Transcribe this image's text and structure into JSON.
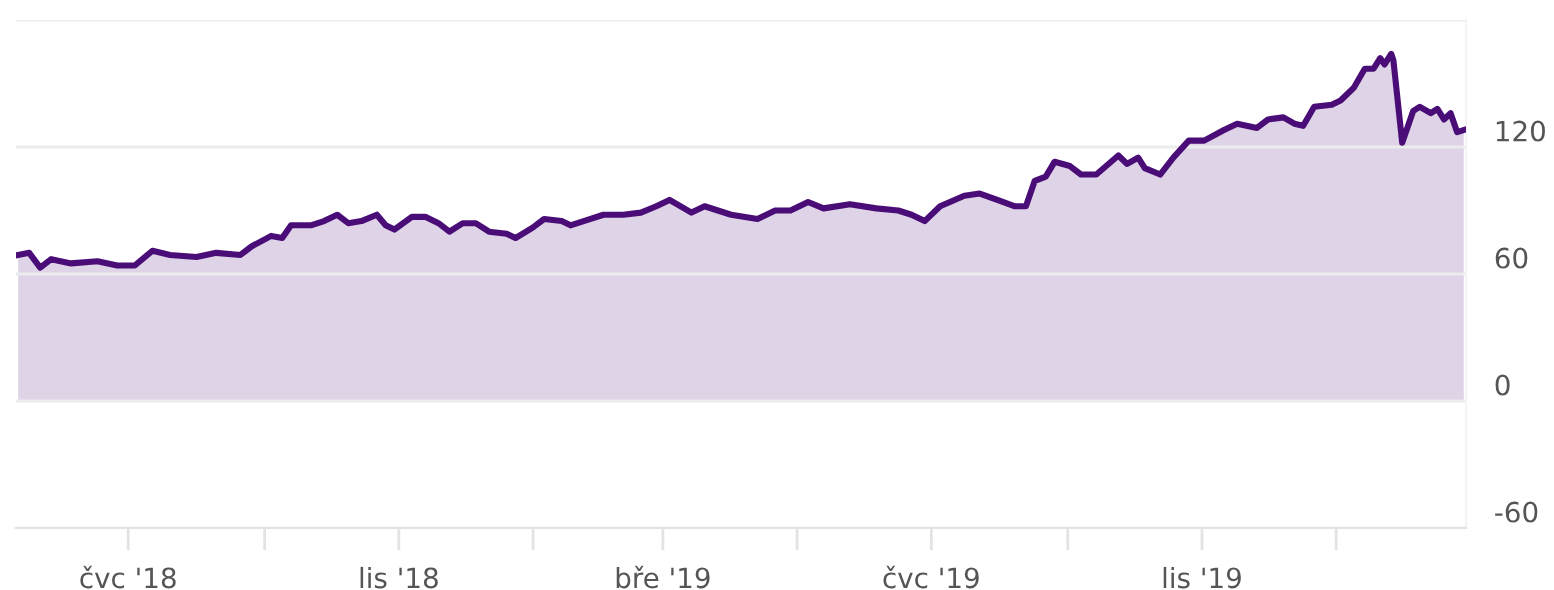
{
  "chart_data": {
    "type": "area",
    "x": [
      "2018-05-12",
      "2018-05-17",
      "2018-05-22",
      "2018-05-27",
      "2018-06-05",
      "2018-06-17",
      "2018-06-26",
      "2018-07-04",
      "2018-07-12",
      "2018-07-20",
      "2018-08-01",
      "2018-08-10",
      "2018-08-21",
      "2018-08-26",
      "2018-09-04",
      "2018-09-09",
      "2018-09-13",
      "2018-09-22",
      "2018-09-28",
      "2018-10-04",
      "2018-10-09",
      "2018-10-15",
      "2018-10-22",
      "2018-10-26",
      "2018-10-30",
      "2018-11-07",
      "2018-11-13",
      "2018-11-19",
      "2018-11-24",
      "2018-11-30",
      "2018-12-06",
      "2018-12-12",
      "2018-12-20",
      "2018-12-24",
      "2019-01-01",
      "2019-01-06",
      "2019-01-14",
      "2019-01-18",
      "2019-01-24",
      "2019-02-02",
      "2019-02-11",
      "2019-02-19",
      "2019-02-26",
      "2019-03-04",
      "2019-03-14",
      "2019-03-20",
      "2019-03-26",
      "2019-04-01",
      "2019-04-13",
      "2019-04-21",
      "2019-04-28",
      "2019-05-06",
      "2019-05-13",
      "2019-05-25",
      "2019-06-06",
      "2019-06-16",
      "2019-06-22",
      "2019-06-28",
      "2019-07-05",
      "2019-07-16",
      "2019-07-23",
      "2019-07-31",
      "2019-08-08",
      "2019-08-13",
      "2019-08-17",
      "2019-08-22",
      "2019-08-26",
      "2019-09-02",
      "2019-09-07",
      "2019-09-14",
      "2019-09-24",
      "2019-09-28",
      "2019-10-03",
      "2019-10-06",
      "2019-10-13",
      "2019-10-19",
      "2019-10-26",
      "2019-11-02",
      "2019-11-11",
      "2019-11-17",
      "2019-11-26",
      "2019-12-01",
      "2019-12-08",
      "2019-12-13",
      "2019-12-17",
      "2019-12-22",
      "2019-12-30",
      "2020-01-03",
      "2020-01-09",
      "2020-01-14",
      "2020-01-18",
      "2020-01-21",
      "2020-01-23",
      "2020-01-26",
      "2020-01-27",
      "2020-01-31",
      "2020-02-05",
      "2020-02-08",
      "2020-02-13",
      "2020-02-16",
      "2020-02-19",
      "2020-02-22",
      "2020-02-25",
      "2020-02-28"
    ],
    "series": [
      {
        "color": "#4a0d78",
        "values": [
          69,
          70,
          63,
          67,
          65,
          66,
          64,
          64,
          71,
          69,
          68,
          70,
          69,
          73,
          78,
          77,
          83,
          83,
          85,
          88,
          84,
          85,
          88,
          83,
          81,
          87,
          87,
          84,
          80,
          84,
          84,
          80,
          79,
          77,
          82,
          86,
          85,
          83,
          85,
          88,
          88,
          89,
          92,
          95,
          89,
          92,
          90,
          88,
          86,
          90,
          90,
          94,
          91,
          93,
          91,
          90,
          88,
          85,
          92,
          97,
          98,
          95,
          92,
          92,
          104,
          106,
          113,
          111,
          107,
          107,
          116,
          112,
          115,
          110,
          107,
          115,
          123,
          123,
          128,
          131,
          129,
          133,
          134,
          131,
          130,
          139,
          140,
          142,
          148,
          157,
          157,
          162,
          159,
          164,
          161,
          122,
          137,
          139,
          136,
          138,
          133,
          136,
          127,
          128
        ]
      }
    ],
    "xlim": [
      "2018-05-11",
      "2020-02-29"
    ],
    "xticks": [
      {
        "value": "2018-07-01",
        "label": "čvc '18"
      },
      {
        "value": "2018-09-01",
        "label": null
      },
      {
        "value": "2018-11-01",
        "label": "lis '18"
      },
      {
        "value": "2019-01-01",
        "label": null
      },
      {
        "value": "2019-03-01",
        "label": "bře '19"
      },
      {
        "value": "2019-05-01",
        "label": null
      },
      {
        "value": "2019-07-01",
        "label": "čvc '19"
      },
      {
        "value": "2019-09-01",
        "label": null
      },
      {
        "value": "2019-11-01",
        "label": "lis '19"
      },
      {
        "value": "2020-01-01",
        "label": null
      }
    ],
    "ylim": [
      -60,
      180
    ],
    "yticks": [
      -60,
      0,
      60,
      120,
      {
        "value": 180,
        "label": null
      }
    ],
    "grid": "y",
    "marker": "none",
    "line_style": "solid"
  }
}
